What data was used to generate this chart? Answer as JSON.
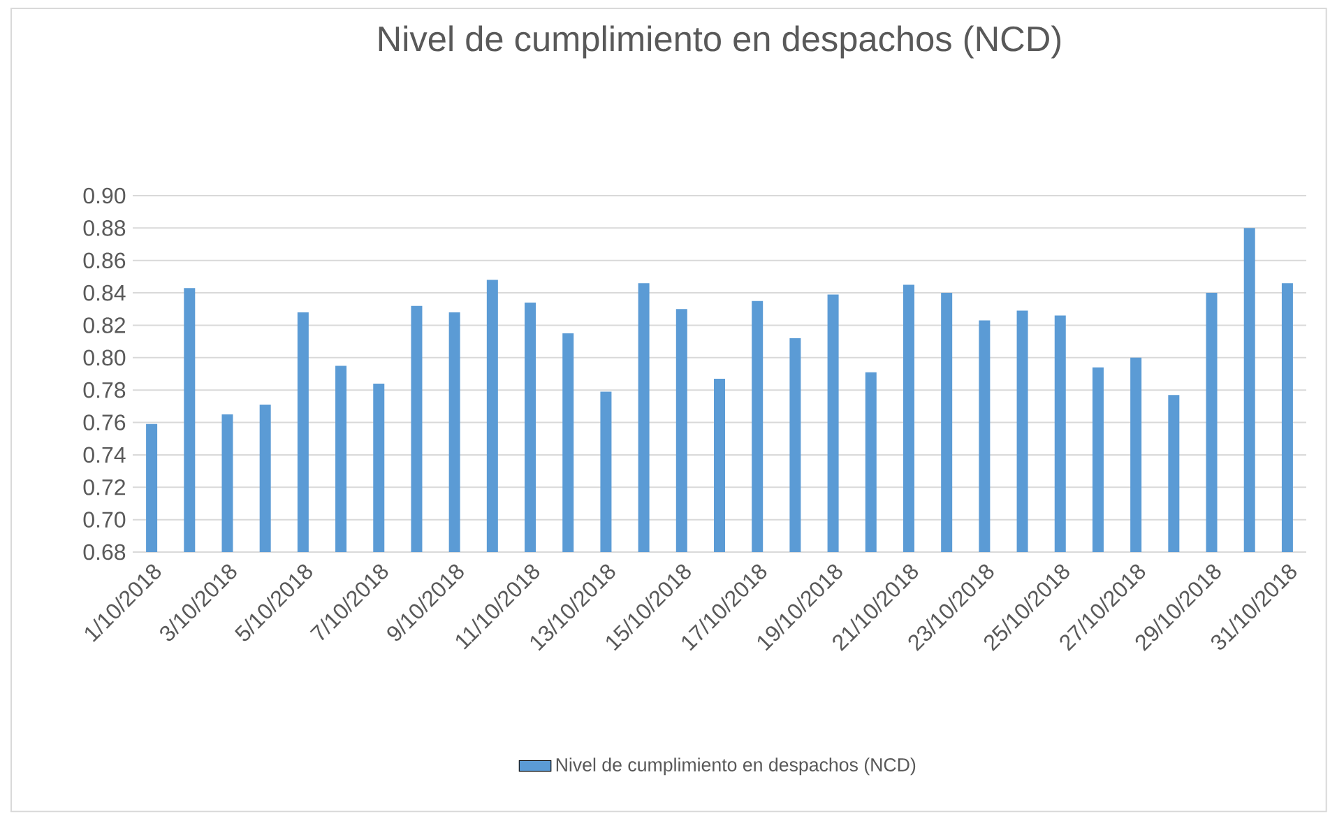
{
  "chart_data": {
    "type": "bar",
    "title": "Nivel de cumplimiento en despachos (NCD)",
    "categories": [
      "1/10/2018",
      null,
      "3/10/2018",
      null,
      "5/10/2018",
      null,
      "7/10/2018",
      null,
      "9/10/2018",
      null,
      "11/10/2018",
      null,
      "13/10/2018",
      null,
      "15/10/2018",
      null,
      "17/10/2018",
      null,
      "19/10/2018",
      null,
      "21/10/2018",
      null,
      "23/10/2018",
      null,
      "25/10/2018",
      null,
      "27/10/2018",
      null,
      "29/10/2018",
      null,
      "31/10/2018"
    ],
    "series": [
      {
        "name": "Nivel de cumplimiento en despachos (NCD)",
        "color": "#5b9bd5",
        "values": [
          0.759,
          0.843,
          0.765,
          0.771,
          0.828,
          0.795,
          0.784,
          0.832,
          0.828,
          0.848,
          0.834,
          0.815,
          0.779,
          0.846,
          0.83,
          0.787,
          0.835,
          0.812,
          0.839,
          0.791,
          0.845,
          0.84,
          0.823,
          0.829,
          0.826,
          0.794,
          0.8,
          0.777,
          0.84,
          0.88,
          0.846
        ]
      }
    ],
    "ylim": [
      0.68,
      0.9
    ],
    "yticks": [
      {
        "value": 0.68,
        "label": "0.68"
      },
      {
        "value": 0.7,
        "label": "0.70"
      },
      {
        "value": 0.72,
        "label": "0.72"
      },
      {
        "value": 0.74,
        "label": "0.74"
      },
      {
        "value": 0.76,
        "label": "0.76"
      },
      {
        "value": 0.78,
        "label": "0.78"
      },
      {
        "value": 0.8,
        "label": "0.80"
      },
      {
        "value": 0.82,
        "label": "0.82"
      },
      {
        "value": 0.84,
        "label": "0.84"
      },
      {
        "value": 0.86,
        "label": "0.86"
      },
      {
        "value": 0.88,
        "label": "0.88"
      },
      {
        "value": 0.9,
        "label": "0.90"
      }
    ],
    "grid": "y",
    "legend": "bottom"
  }
}
